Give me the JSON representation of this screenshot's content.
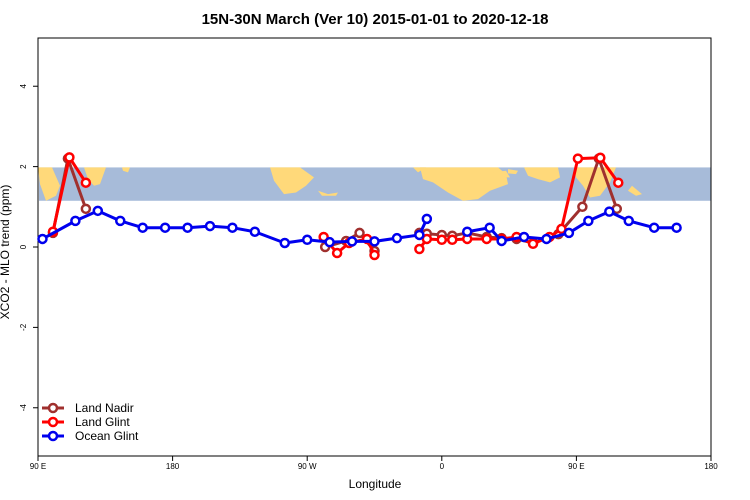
{
  "colors": {
    "land_nadir": "#a0302e",
    "land_glint": "#ff0000",
    "ocean_glint": "#0000ee",
    "map_ocean": "#a7bbd9",
    "map_land": "#ffd97a"
  },
  "chart_data": {
    "type": "line",
    "title": "15N-30N March (Ver 10)   2015-01-01 to 2020-12-18",
    "xlabel": "Longitude",
    "ylabel": "XCO2 - MLO trend (ppm)",
    "xlim": [
      90,
      540
    ],
    "ylim": [
      -5.2,
      5.2
    ],
    "x_ticks": [
      {
        "value": 90,
        "label": "90 E"
      },
      {
        "value": 180,
        "label": "180"
      },
      {
        "value": 270,
        "label": "90 W"
      },
      {
        "value": 360,
        "label": "0"
      },
      {
        "value": 450,
        "label": "90 E"
      },
      {
        "value": 540,
        "label": "180"
      }
    ],
    "y_ticks": [
      {
        "value": -4,
        "label": "-4"
      },
      {
        "value": -2,
        "label": "-2"
      },
      {
        "value": 0,
        "label": "0"
      },
      {
        "value": 2,
        "label": "2"
      },
      {
        "value": 4,
        "label": "4"
      }
    ],
    "map_band": {
      "y_from": 1.15,
      "y_to": 1.98
    },
    "legend_position": "bottom-left",
    "series": [
      {
        "name": "Land Nadir",
        "color_key": "land_nadir",
        "segments": [
          [
            [
              100,
              0.35
            ],
            [
              110,
              2.2
            ],
            [
              122,
              0.95
            ]
          ],
          [
            [
              282,
              0.0
            ],
            [
              296,
              0.15
            ],
            [
              305,
              0.35
            ],
            [
              315,
              -0.1
            ]
          ],
          [
            [
              345,
              0.35
            ],
            [
              350,
              0.33
            ],
            [
              360,
              0.3
            ],
            [
              367,
              0.28
            ],
            [
              377,
              0.35
            ],
            [
              390,
              0.25
            ],
            [
              400,
              0.22
            ],
            [
              410,
              0.2
            ],
            [
              421,
              0.1
            ],
            [
              438,
              0.32
            ],
            [
              454,
              1.0
            ],
            [
              465,
              2.2
            ],
            [
              477,
              0.95
            ]
          ]
        ]
      },
      {
        "name": "Land Glint",
        "color_key": "land_glint",
        "segments": [
          [
            [
              100,
              0.38
            ],
            [
              111,
              2.23
            ],
            [
              122,
              1.6
            ]
          ],
          [
            [
              281,
              0.25
            ],
            [
              290,
              -0.15
            ],
            [
              298,
              0.1
            ],
            [
              310,
              0.2
            ],
            [
              315,
              -0.2
            ]
          ],
          [
            [
              345,
              -0.05
            ],
            [
              350,
              0.2
            ],
            [
              360,
              0.18
            ],
            [
              367,
              0.18
            ],
            [
              377,
              0.2
            ],
            [
              390,
              0.2
            ],
            [
              400,
              0.2
            ],
            [
              410,
              0.25
            ],
            [
              421,
              0.08
            ],
            [
              432,
              0.25
            ],
            [
              440,
              0.45
            ],
            [
              451,
              2.2
            ],
            [
              466,
              2.22
            ],
            [
              478,
              1.6
            ]
          ]
        ]
      },
      {
        "name": "Ocean Glint",
        "color_key": "ocean_glint",
        "segments": [
          [
            [
              93,
              0.2
            ],
            [
              115,
              0.65
            ],
            [
              130,
              0.9
            ],
            [
              145,
              0.65
            ],
            [
              160,
              0.48
            ],
            [
              175,
              0.48
            ],
            [
              190,
              0.48
            ],
            [
              205,
              0.52
            ],
            [
              220,
              0.48
            ],
            [
              235,
              0.38
            ],
            [
              255,
              0.1
            ],
            [
              270,
              0.18
            ],
            [
              285,
              0.12
            ],
            [
              300,
              0.14
            ],
            [
              315,
              0.14
            ],
            [
              330,
              0.22
            ],
            [
              345,
              0.3
            ],
            [
              350,
              0.7
            ]
          ],
          [
            [
              377,
              0.38
            ],
            [
              392,
              0.48
            ],
            [
              400,
              0.15
            ],
            [
              415,
              0.25
            ],
            [
              430,
              0.2
            ],
            [
              445,
              0.35
            ],
            [
              458,
              0.65
            ],
            [
              472,
              0.88
            ],
            [
              485,
              0.65
            ],
            [
              502,
              0.48
            ],
            [
              517,
              0.48
            ]
          ]
        ]
      }
    ]
  }
}
